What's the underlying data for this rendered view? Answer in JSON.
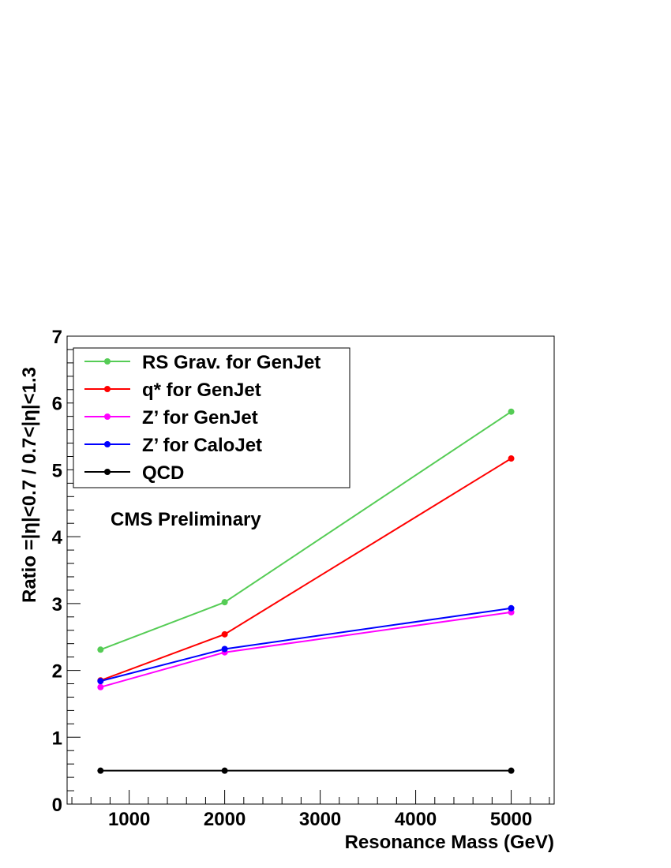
{
  "chart_data": {
    "type": "line",
    "xlabel": "Resonance Mass (GeV)",
    "ylabel": "Ratio =|η|<0.7 / 0.7<|η|<1.3",
    "annotation": "CMS Preliminary",
    "xlim": [
      350,
      5450
    ],
    "ylim": [
      0,
      7
    ],
    "x_ticks": [
      1000,
      2000,
      3000,
      4000,
      5000
    ],
    "y_ticks": [
      0,
      1,
      2,
      3,
      4,
      5,
      6,
      7
    ],
    "x": [
      700,
      2000,
      5000
    ],
    "legend_position": "top-left",
    "series": [
      {
        "name": "RS Grav. for GenJet",
        "color": "#55cc55",
        "values": [
          2.31,
          3.02,
          5.87
        ]
      },
      {
        "name": "q* for GenJet",
        "color": "#ff0000",
        "values": [
          1.85,
          2.54,
          5.17
        ]
      },
      {
        "name": "Z’ for GenJet",
        "color": "#ff00ff",
        "values": [
          1.75,
          2.27,
          2.87
        ]
      },
      {
        "name": "Z’ for CaloJet",
        "color": "#0000ff",
        "values": [
          1.84,
          2.32,
          2.93
        ]
      },
      {
        "name": "QCD",
        "color": "#000000",
        "values": [
          0.5,
          0.5,
          0.5
        ]
      }
    ]
  }
}
